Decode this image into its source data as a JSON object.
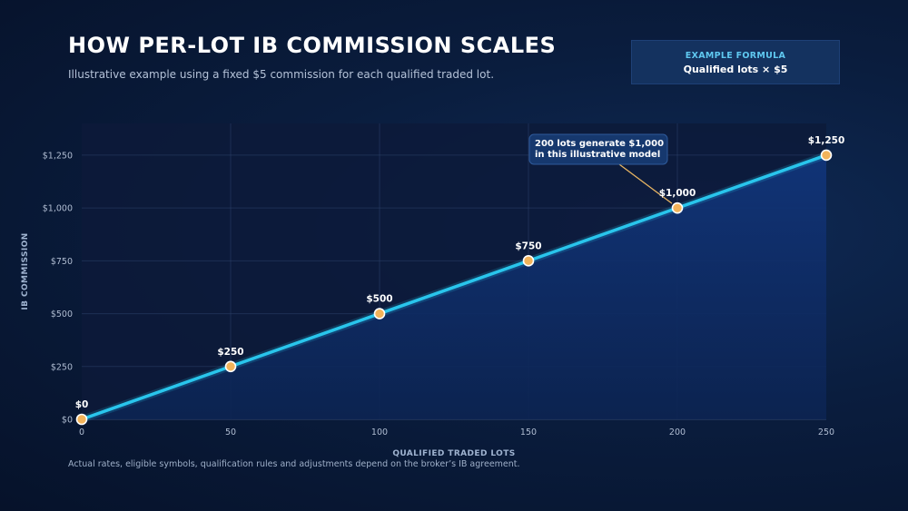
{
  "header": {
    "title": "HOW PER-LOT IB COMMISSION SCALES",
    "subtitle": "Illustrative example using a fixed $5 commission for each qualified traded lot."
  },
  "formula": {
    "label": "EXAMPLE FORMULA",
    "value": "Qualified lots × $5"
  },
  "footnote": "Actual rates, eligible symbols, qualification rules and adjustments depend on the broker’s IB agreement.",
  "colors": {
    "line": "#29c5ec",
    "point_fill": "#f2b35a",
    "point_stroke": "#ffffff",
    "area": "#10306a",
    "annotation_line": "#e8b563"
  },
  "chart_data": {
    "type": "line",
    "xlabel": "QUALIFIED TRADED LOTS",
    "ylabel": "IB COMMISSION",
    "x": [
      0,
      50,
      100,
      150,
      200,
      250
    ],
    "values": [
      0,
      250,
      500,
      750,
      1000,
      1250
    ],
    "data_labels": [
      "$0",
      "$250",
      "$500",
      "$750",
      "$1,000",
      "$1,250"
    ],
    "xlim": [
      0,
      250
    ],
    "ylim": [
      0,
      1400
    ],
    "xticks": [
      0,
      50,
      100,
      150,
      200,
      250
    ],
    "yticks": [
      0,
      250,
      500,
      750,
      1000,
      1250
    ],
    "ytick_labels": [
      "$0",
      "$250",
      "$500",
      "$750",
      "$1,000",
      "$1,250"
    ],
    "grid": true,
    "annotation": {
      "lines": [
        "200 lots generate $1,000",
        "in this illustrative model"
      ],
      "target_x": 200,
      "target_y": 1000
    }
  }
}
